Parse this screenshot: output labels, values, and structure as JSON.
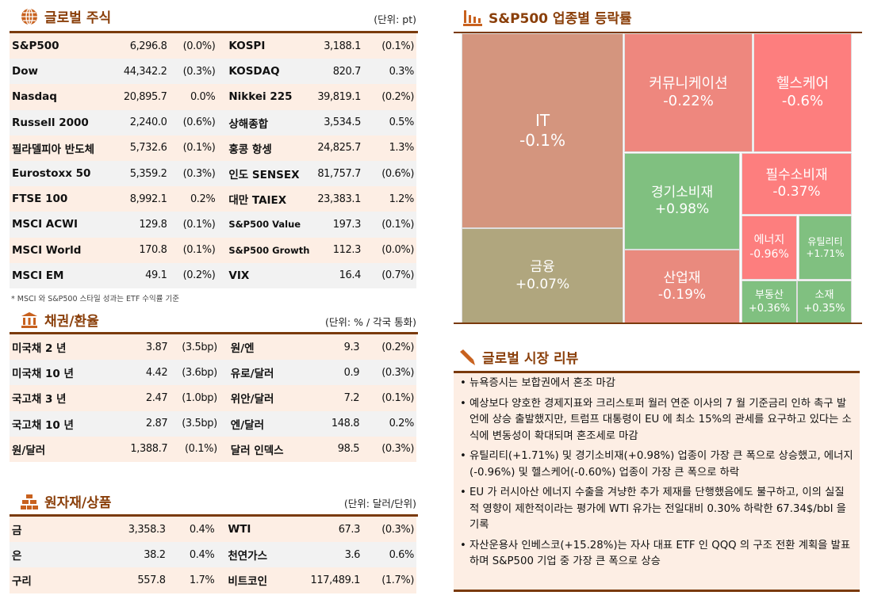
{
  "equities": {
    "title": "글로벌 주식",
    "unit": "(단위: pt)",
    "note": "* MSCI 와 S&P500 스타일 성과는 ETF 수익률 기준",
    "rows": [
      [
        "S&P500",
        "6,296.8",
        "(0.0%)",
        "KOSPI",
        "3,188.1",
        "(0.1%)"
      ],
      [
        "Dow",
        "44,342.2",
        "(0.3%)",
        "KOSDAQ",
        "820.7",
        "0.3%"
      ],
      [
        "Nasdaq",
        "20,895.7",
        "0.0%",
        "Nikkei 225",
        "39,819.1",
        "(0.2%)"
      ],
      [
        "Russell 2000",
        "2,240.0",
        "(0.6%)",
        "상해종합",
        "3,534.5",
        "0.5%"
      ],
      [
        "필라델피아 반도체",
        "5,732.6",
        "(0.1%)",
        "홍콩 항셍",
        "24,825.7",
        "1.3%"
      ],
      [
        "Eurostoxx 50",
        "5,359.2",
        "(0.3%)",
        "인도 SENSEX",
        "81,757.7",
        "(0.6%)"
      ],
      [
        "FTSE 100",
        "8,992.1",
        "0.2%",
        "대만 TAIEX",
        "23,383.1",
        "1.2%"
      ],
      [
        "MSCI ACWI",
        "129.8",
        "(0.1%)",
        "S&P500 Value",
        "197.3",
        "(0.1%)"
      ],
      [
        "MSCI World",
        "170.8",
        "(0.1%)",
        "S&P500 Growth",
        "112.3",
        "(0.0%)"
      ],
      [
        "MSCI EM",
        "49.1",
        "(0.2%)",
        "VIX",
        "16.4",
        "(0.7%)"
      ]
    ]
  },
  "bonds": {
    "title": "채권/환율",
    "unit": "(단위: % / 각국 통화)",
    "rows": [
      [
        "미국채 2 년",
        "3.87",
        "(3.5bp)",
        "원/엔",
        "9.3",
        "(0.2%)"
      ],
      [
        "미국채 10 년",
        "4.42",
        "(3.6bp)",
        "유로/달러",
        "0.9",
        "(0.3%)"
      ],
      [
        "국고채 3 년",
        "2.47",
        "(1.0bp)",
        "위안/달러",
        "7.2",
        "(0.1%)"
      ],
      [
        "국고채 10 년",
        "2.87",
        "(3.5bp)",
        "엔/달러",
        "148.8",
        "0.2%"
      ],
      [
        "원/달러",
        "1,388.7",
        "(0.1%)",
        "달러 인덱스",
        "98.5",
        "(0.3%)"
      ]
    ]
  },
  "commodities": {
    "title": "원자재/상품",
    "unit": "(단위: 달러/단위)",
    "rows": [
      [
        "금",
        "3,358.3",
        "0.4%",
        "WTI",
        "67.3",
        "(0.3%)"
      ],
      [
        "은",
        "38.2",
        "0.4%",
        "천연가스",
        "3.6",
        "0.6%"
      ],
      [
        "구리",
        "557.8",
        "1.7%",
        "비트코인",
        "117,489.1",
        "(1.7%)"
      ]
    ]
  },
  "sectors": {
    "title": "S&P500 업종별 등락률",
    "items": [
      {
        "name": "IT",
        "change": "-0.1%",
        "color": "#d4957e"
      },
      {
        "name": "금융",
        "change": "+0.07%",
        "color": "#b0a67e"
      },
      {
        "name": "커뮤니케이션",
        "change": "-0.22%",
        "color": "#ee877e"
      },
      {
        "name": "헬스케어",
        "change": "-0.6%",
        "color": "#fd7e7e"
      },
      {
        "name": "경기소비재",
        "change": "+0.98%",
        "color": "#80c080"
      },
      {
        "name": "필수소비재",
        "change": "-0.37%",
        "color": "#fd7e7e"
      },
      {
        "name": "에너지",
        "change": "-0.96%",
        "color": "#fd7e7e"
      },
      {
        "name": "유틸리티",
        "change": "+1.71%",
        "color": "#80c080"
      },
      {
        "name": "산업재",
        "change": "-0.19%",
        "color": "#e98a7e"
      },
      {
        "name": "부동산",
        "change": "+0.36%",
        "color": "#80c080"
      },
      {
        "name": "소재",
        "change": "+0.35%",
        "color": "#80c080"
      }
    ]
  },
  "review": {
    "title": "글로벌 시장 리뷰",
    "items": [
      "뉴욕증시는 보합권에서 혼조 마감",
      "예상보다 양호한 경제지표와 크리스토퍼 월러 연준 이사의 7 월 기준금리 인하 촉구 발언에 상승 출발했지만, 트럼프 대통령이 EU 에 최소 15%의 관세를 요구하고 있다는 소식에 변동성이 확대되며 혼조세로 마감",
      "유틸리티(+1.71%) 및 경기소비재(+0.98%) 업종이 가장 큰 폭으로 상승했고, 에너지(-0.96%) 및 헬스케어(-0.60%) 업종이 가장 큰 폭으로 하락",
      "EU 가 러시아산 에너지 수출을 겨냥한 추가 제재를 단행했음에도 불구하고, 이의 실질적 영향이 제한적이라는 평가에 WTI 유가는 전일대비 0.30% 하락한 67.34$/bbl 을 기록",
      "자산운용사 인베스코(+15.28%)는 자사 대표 ETF 인 QQQ 의 구조 전환 계획을 발표하며 S&P500 기업 중 가장 큰 폭으로 상승"
    ]
  },
  "accent": "#7a3a0c"
}
